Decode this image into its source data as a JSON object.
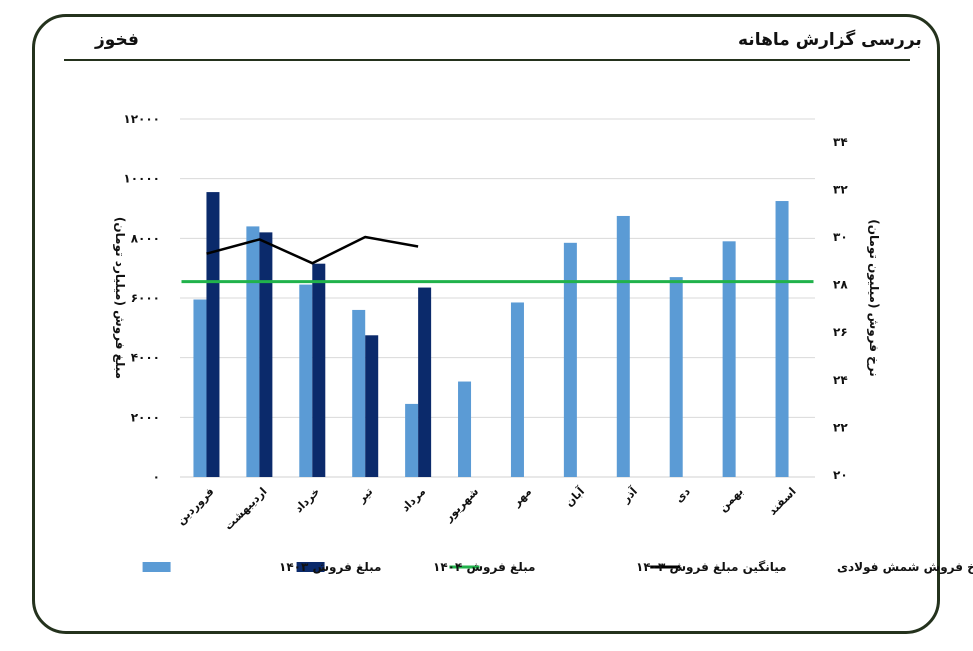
{
  "header": {
    "title": "بررسی گزارش ماهانه",
    "ticker": "فخوز"
  },
  "colors": {
    "frame": "#24321d",
    "sales_1403": "#5b9bd5",
    "sales_1404": "#0b2a6b",
    "average_1403": "#21b24b",
    "price": "#000000",
    "grid": "#d9d9d9"
  },
  "chart_data": {
    "type": "bar",
    "categories": [
      "فروردین",
      "اردیبهشت",
      "خرداد",
      "تیر",
      "مرداد",
      "شهریور",
      "مهر",
      "آبان",
      "آذر",
      "دی",
      "بهمن",
      "اسفند"
    ],
    "series": [
      {
        "name": "مبلغ فروش ۱۴۰۳",
        "kind": "bar",
        "axis": "left",
        "values": [
          5950,
          8400,
          6450,
          5600,
          2450,
          3200,
          5850,
          7850,
          8750,
          6700,
          7900,
          9250
        ]
      },
      {
        "name": "مبلغ فروش ۱۴۰۴",
        "kind": "bar",
        "axis": "left",
        "values": [
          9550,
          8200,
          7150,
          4750,
          6350,
          null,
          null,
          null,
          null,
          null,
          null,
          null
        ]
      },
      {
        "name": "میانگین مبلغ فروش ۱۴۰۳",
        "kind": "line",
        "axis": "left",
        "values": [
          6550,
          6550,
          6550,
          6550,
          6550,
          6550,
          6550,
          6550,
          6550,
          6550,
          6550,
          6550
        ]
      },
      {
        "name": "نرخ فروش شمش فولادی",
        "kind": "line",
        "axis": "right",
        "values": [
          29.3,
          29.9,
          28.9,
          30.0,
          29.6,
          null,
          null,
          null,
          null,
          null,
          null,
          null
        ]
      }
    ],
    "ylabel": "مبلغ فروش (میلیارد تومان)",
    "ylabel_right": "نرخ فروش (میلیون تومان)",
    "ylim": [
      0,
      12000
    ],
    "ylim_right": [
      20,
      35
    ],
    "yticks": [
      "۰",
      "۲۰۰۰",
      "۴۰۰۰",
      "۶۰۰۰",
      "۸۰۰۰",
      "۱۰۰۰۰",
      "۱۲۰۰۰"
    ],
    "yticks_right": [
      "۲۰",
      "۲۲",
      "۲۴",
      "۲۶",
      "۲۸",
      "۳۰",
      "۳۲",
      "۳۴"
    ],
    "grid": true,
    "legend_position": "bottom"
  }
}
